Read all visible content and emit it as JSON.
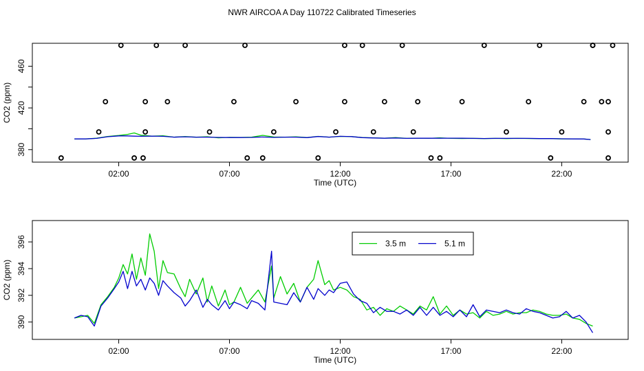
{
  "title": "NWR AIRCOA A  Day 110722  Calibrated Timeseries",
  "colors": {
    "green": "#00cc00",
    "blue": "#0000cc",
    "axis": "#000000"
  },
  "chart_data": [
    {
      "type": "scatter",
      "xlabel": "Time (UTC)",
      "ylabel": "CO2 (ppm)",
      "x_unit": "hours UTC",
      "xlim": [
        -1.9,
        25.0
      ],
      "ylim": [
        368,
        482
      ],
      "x_ticks": [
        {
          "v": 2,
          "label": "02:00"
        },
        {
          "v": 7,
          "label": "07:00"
        },
        {
          "v": 12,
          "label": "12:00"
        },
        {
          "v": 17,
          "label": "17:00"
        },
        {
          "v": 22,
          "label": "22:00"
        }
      ],
      "y_ticks": [
        {
          "v": 380,
          "label": "380"
        },
        {
          "v": 420,
          "label": "420"
        },
        {
          "v": 460,
          "label": "460"
        }
      ],
      "y_ticks_unlabeled": [
        400,
        440
      ],
      "series": [
        {
          "color": "green",
          "x": [
            0.0,
            0.5,
            1.0,
            1.5,
            2.0,
            2.4,
            2.7,
            3.0,
            3.5,
            4.0,
            4.5,
            5.0,
            5.5,
            6.0,
            6.5,
            7.0,
            7.5,
            8.0,
            8.5,
            9.0,
            9.5,
            10.0,
            10.5,
            11.0,
            11.5,
            12.0,
            12.5,
            13.0,
            13.5,
            14.0,
            14.5,
            15.0,
            15.5,
            16.0,
            16.5,
            17.0,
            17.5,
            18.0,
            18.5,
            19.0,
            19.5,
            20.0,
            20.5,
            21.0,
            21.5,
            22.0,
            22.5,
            23.0,
            23.3
          ],
          "y": [
            390.3,
            390.3,
            390.9,
            392.6,
            393.6,
            394.6,
            396.0,
            393.8,
            392.9,
            393.3,
            392.0,
            392.5,
            391.9,
            392.4,
            391.3,
            391.8,
            391.7,
            391.9,
            393.7,
            392.1,
            392.0,
            392.3,
            391.6,
            392.7,
            392.0,
            392.7,
            392.5,
            391.6,
            391.3,
            391.0,
            391.5,
            390.8,
            391.0,
            390.8,
            391.3,
            390.8,
            390.7,
            390.8,
            390.6,
            390.8,
            390.6,
            390.8,
            390.7,
            390.6,
            390.6,
            390.3,
            390.3,
            390.2,
            389.7
          ]
        },
        {
          "color": "blue",
          "x": [
            0.0,
            0.5,
            1.0,
            1.5,
            2.0,
            2.4,
            2.7,
            3.0,
            3.5,
            4.0,
            4.5,
            5.0,
            5.5,
            6.0,
            6.5,
            7.0,
            7.5,
            8.0,
            8.5,
            9.0,
            9.5,
            10.0,
            10.5,
            11.0,
            11.5,
            12.0,
            12.5,
            13.0,
            13.5,
            14.0,
            14.5,
            15.0,
            15.5,
            16.0,
            16.5,
            17.0,
            17.5,
            18.0,
            18.5,
            19.0,
            19.5,
            20.0,
            20.5,
            21.0,
            21.5,
            22.0,
            22.5,
            23.0,
            23.3
          ],
          "y": [
            390.3,
            390.3,
            390.8,
            392.4,
            393.2,
            393.2,
            392.9,
            392.8,
            393.0,
            392.8,
            392.0,
            392.3,
            392.0,
            392.0,
            391.7,
            391.6,
            391.6,
            391.7,
            392.1,
            391.7,
            392.0,
            392.0,
            391.5,
            392.6,
            392.0,
            392.8,
            392.5,
            391.5,
            391.2,
            390.9,
            391.2,
            390.8,
            390.9,
            390.9,
            390.9,
            391.0,
            390.9,
            390.8,
            390.7,
            390.8,
            390.8,
            390.8,
            390.8,
            390.6,
            390.6,
            390.4,
            390.3,
            390.2,
            389.7
          ]
        },
        {
          "name": "",
          "marker": "open-circle",
          "x": [
            -0.6,
            1.1,
            1.4,
            2.1,
            2.7,
            3.1,
            3.2,
            3.2,
            3.7,
            4.2,
            5.0,
            6.1,
            7.2,
            7.7,
            7.8,
            8.5,
            9.0,
            10.0,
            11.0,
            11.8,
            12.2,
            12.2,
            13.0,
            13.5,
            14.0,
            14.8,
            15.3,
            15.5,
            16.1,
            16.5,
            17.5,
            18.5,
            19.5,
            20.5,
            21.0,
            21.5,
            22.0,
            23.0,
            23.4,
            23.4,
            23.8,
            24.1,
            24.1,
            24.1,
            24.3
          ],
          "y": [
            372,
            397,
            426,
            480,
            372,
            372,
            397,
            426,
            480,
            426,
            480,
            397,
            426,
            480,
            372,
            372,
            397,
            426,
            372,
            397,
            480,
            426,
            480,
            397,
            426,
            480,
            397,
            426,
            372,
            372,
            426,
            480,
            397,
            426,
            480,
            372,
            397,
            426,
            480,
            480,
            426,
            397,
            372,
            426,
            480
          ]
        }
      ]
    },
    {
      "type": "line",
      "xlabel": "Time (UTC)",
      "ylabel": "CO2 (ppm)",
      "x_unit": "hours UTC",
      "xlim": [
        -1.9,
        25.0
      ],
      "ylim": [
        388.7,
        397.6
      ],
      "x_ticks": [
        {
          "v": 2,
          "label": "02:00"
        },
        {
          "v": 7,
          "label": "07:00"
        },
        {
          "v": 12,
          "label": "12:00"
        },
        {
          "v": 17,
          "label": "17:00"
        },
        {
          "v": 22,
          "label": "22:00"
        }
      ],
      "y_ticks": [
        {
          "v": 390,
          "label": "390"
        },
        {
          "v": 392,
          "label": "392"
        },
        {
          "v": 394,
          "label": "394"
        },
        {
          "v": 396,
          "label": "396"
        }
      ],
      "legend": "top-center",
      "series": [
        {
          "name": "3.5 m",
          "color": "green",
          "x": [
            0.0,
            0.3,
            0.6,
            0.9,
            1.2,
            1.5,
            1.8,
            2.0,
            2.2,
            2.4,
            2.6,
            2.8,
            3.0,
            3.2,
            3.4,
            3.6,
            3.8,
            4.0,
            4.2,
            4.5,
            4.8,
            5.0,
            5.2,
            5.5,
            5.8,
            6.0,
            6.2,
            6.5,
            6.8,
            7.0,
            7.2,
            7.5,
            7.8,
            8.0,
            8.3,
            8.6,
            8.9,
            9.0,
            9.3,
            9.6,
            9.9,
            10.2,
            10.5,
            10.8,
            11.0,
            11.3,
            11.5,
            11.7,
            12.0,
            12.3,
            12.6,
            12.9,
            13.2,
            13.5,
            13.8,
            14.1,
            14.4,
            14.7,
            15.0,
            15.3,
            15.6,
            15.9,
            16.2,
            16.5,
            16.8,
            17.1,
            17.4,
            17.7,
            18.0,
            18.3,
            18.6,
            18.9,
            19.2,
            19.5,
            19.8,
            20.1,
            20.4,
            20.7,
            21.0,
            21.3,
            21.6,
            21.9,
            22.2,
            22.5,
            22.8,
            23.1,
            23.4
          ],
          "y": [
            390.3,
            390.4,
            390.5,
            389.9,
            391.3,
            391.9,
            392.6,
            393.3,
            394.3,
            393.6,
            395.1,
            393.2,
            394.8,
            393.5,
            396.6,
            395.3,
            392.5,
            394.6,
            393.7,
            393.6,
            392.5,
            391.9,
            393.2,
            392.1,
            393.3,
            391.5,
            392.7,
            391.2,
            392.4,
            391.3,
            391.5,
            392.6,
            391.4,
            391.8,
            392.4,
            391.5,
            394.2,
            391.8,
            393.4,
            392.1,
            392.9,
            391.5,
            392.6,
            393.2,
            394.6,
            392.8,
            393.1,
            392.4,
            392.6,
            392.4,
            391.9,
            391.7,
            390.9,
            391.1,
            390.5,
            391.0,
            390.8,
            391.2,
            390.9,
            390.6,
            391.2,
            390.9,
            391.9,
            390.6,
            391.2,
            390.5,
            390.9,
            390.6,
            390.7,
            390.3,
            390.8,
            390.5,
            390.6,
            390.8,
            390.6,
            390.7,
            390.7,
            390.9,
            390.8,
            390.6,
            390.5,
            390.5,
            390.6,
            390.3,
            390.2,
            389.9,
            389.7
          ]
        },
        {
          "name": "5.1 m",
          "color": "blue",
          "x": [
            0.0,
            0.3,
            0.6,
            0.9,
            1.2,
            1.5,
            1.8,
            2.0,
            2.2,
            2.4,
            2.6,
            2.8,
            3.0,
            3.2,
            3.4,
            3.6,
            3.8,
            4.0,
            4.2,
            4.5,
            4.8,
            5.0,
            5.2,
            5.5,
            5.8,
            6.0,
            6.2,
            6.5,
            6.8,
            7.0,
            7.2,
            7.5,
            7.8,
            8.0,
            8.3,
            8.6,
            8.9,
            9.0,
            9.3,
            9.6,
            9.9,
            10.2,
            10.5,
            10.8,
            11.0,
            11.3,
            11.5,
            11.7,
            12.0,
            12.3,
            12.6,
            12.9,
            13.2,
            13.5,
            13.8,
            14.1,
            14.4,
            14.7,
            15.0,
            15.3,
            15.6,
            15.9,
            16.2,
            16.5,
            16.8,
            17.1,
            17.4,
            17.7,
            18.0,
            18.3,
            18.6,
            18.9,
            19.2,
            19.5,
            19.8,
            20.1,
            20.4,
            20.7,
            21.0,
            21.3,
            21.6,
            21.9,
            22.2,
            22.5,
            22.8,
            23.1,
            23.4
          ],
          "y": [
            390.3,
            390.5,
            390.4,
            389.7,
            391.2,
            391.8,
            392.5,
            393.0,
            393.8,
            392.5,
            393.8,
            392.7,
            393.2,
            392.4,
            393.3,
            392.9,
            392.0,
            393.1,
            392.7,
            392.2,
            391.8,
            391.2,
            391.6,
            392.4,
            391.1,
            391.7,
            391.3,
            390.9,
            391.6,
            391.0,
            391.5,
            391.3,
            391.0,
            391.6,
            391.4,
            390.9,
            395.3,
            391.5,
            391.4,
            391.3,
            392.2,
            391.5,
            392.6,
            391.7,
            392.5,
            392.0,
            392.4,
            392.2,
            392.9,
            393.0,
            392.1,
            391.6,
            391.4,
            390.7,
            391.1,
            390.8,
            390.8,
            390.6,
            390.9,
            390.5,
            391.1,
            390.5,
            391.1,
            390.5,
            390.8,
            390.4,
            390.9,
            390.4,
            391.3,
            390.4,
            390.9,
            390.8,
            390.7,
            390.9,
            390.7,
            390.6,
            391.0,
            390.8,
            390.7,
            390.5,
            390.3,
            390.4,
            390.8,
            390.3,
            390.5,
            390.0,
            389.2
          ]
        }
      ]
    }
  ]
}
